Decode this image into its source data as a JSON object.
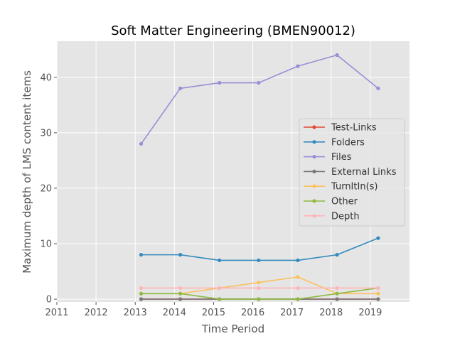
{
  "chart_data": {
    "type": "line",
    "title": "Soft Matter Engineering (BMEN90012)",
    "xlabel": "Time Period",
    "ylabel": "Maximum depth of LMS content items",
    "xlim": [
      2011,
      2020
    ],
    "ylim": [
      -0.5,
      46.5
    ],
    "x_ticks": [
      "2011",
      "2012",
      "2013",
      "2014",
      "2015",
      "2016",
      "2017",
      "2018",
      "2019"
    ],
    "y_ticks": [
      "0",
      "10",
      "20",
      "30",
      "40"
    ],
    "x": [
      2013.15,
      2014.15,
      2015.15,
      2016.15,
      2017.15,
      2018.15,
      2019.2
    ],
    "grid": true,
    "legend_position": "center-right",
    "series": [
      {
        "name": "Test-Links",
        "color": "#E24A33",
        "values": [
          0,
          0,
          0,
          0,
          0,
          0,
          0
        ]
      },
      {
        "name": "Folders",
        "color": "#348ABD",
        "values": [
          8,
          8,
          7,
          7,
          7,
          8,
          11
        ]
      },
      {
        "name": "Files",
        "color": "#988ED5",
        "values": [
          28,
          38,
          39,
          39,
          42,
          44,
          38
        ]
      },
      {
        "name": "External Links",
        "color": "#777777",
        "values": [
          0,
          0,
          0,
          0,
          0,
          0,
          0
        ]
      },
      {
        "name": "TurnItIn(s)",
        "color": "#FBC15E",
        "values": [
          1,
          1,
          2,
          3,
          4,
          1,
          1
        ]
      },
      {
        "name": "Other",
        "color": "#8EBA42",
        "values": [
          1,
          1,
          0,
          0,
          0,
          1,
          2
        ]
      },
      {
        "name": "Depth",
        "color": "#FFB5B8",
        "values": [
          2,
          2,
          2,
          2,
          2,
          2,
          2
        ]
      }
    ]
  }
}
